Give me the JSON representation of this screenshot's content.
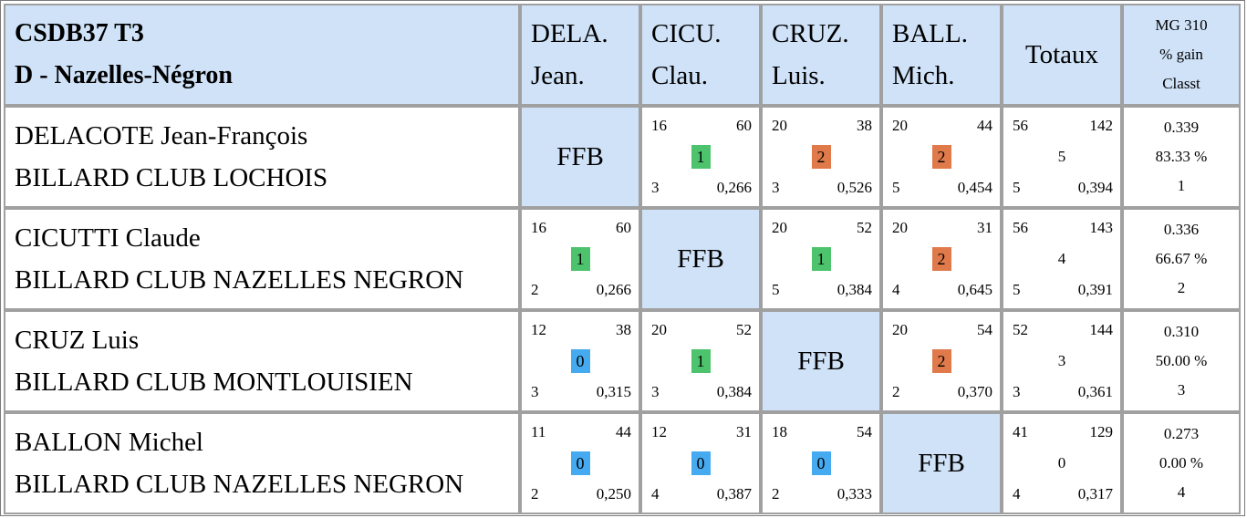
{
  "header": {
    "title_line1": "CSDB37 T3",
    "title_line2": "D - Nazelles-Négron",
    "players": [
      {
        "line1": "DELA.",
        "line2": "Jean."
      },
      {
        "line1": "CICU.",
        "line2": "Clau."
      },
      {
        "line1": "CRUZ.",
        "line2": "Luis."
      },
      {
        "line1": "BALL.",
        "line2": "Mich."
      }
    ],
    "totals_label": "Totaux",
    "mg_line1": "MG 310",
    "mg_line2": "% gain",
    "mg_line3": "Classt"
  },
  "ffb_label": "FFB",
  "rows": [
    {
      "name": "DELACOTE Jean-François",
      "club": "BILLARD CLUB LOCHOIS",
      "cells": [
        null,
        {
          "pts": "16",
          "dist": "60",
          "result": "1",
          "serie": "3",
          "moy": "0,266"
        },
        {
          "pts": "20",
          "dist": "38",
          "result": "2",
          "serie": "3",
          "moy": "0,526"
        },
        {
          "pts": "20",
          "dist": "44",
          "result": "2",
          "serie": "5",
          "moy": "0,454"
        }
      ],
      "totals": {
        "pts": "56",
        "dist": "142",
        "result": "5",
        "serie": "5",
        "moy": "0,394"
      },
      "mg": "0.339",
      "gain": "83.33 %",
      "rank": "1"
    },
    {
      "name": "CICUTTI Claude",
      "club": "BILLARD CLUB NAZELLES NEGRON",
      "cells": [
        {
          "pts": "16",
          "dist": "60",
          "result": "1",
          "serie": "2",
          "moy": "0,266"
        },
        null,
        {
          "pts": "20",
          "dist": "52",
          "result": "1",
          "serie": "5",
          "moy": "0,384"
        },
        {
          "pts": "20",
          "dist": "31",
          "result": "2",
          "serie": "4",
          "moy": "0,645"
        }
      ],
      "totals": {
        "pts": "56",
        "dist": "143",
        "result": "4",
        "serie": "5",
        "moy": "0,391"
      },
      "mg": "0.336",
      "gain": "66.67 %",
      "rank": "2"
    },
    {
      "name": "CRUZ Luis",
      "club": "BILLARD CLUB MONTLOUISIEN",
      "cells": [
        {
          "pts": "12",
          "dist": "38",
          "result": "0",
          "serie": "3",
          "moy": "0,315"
        },
        {
          "pts": "20",
          "dist": "52",
          "result": "1",
          "serie": "3",
          "moy": "0,384"
        },
        null,
        {
          "pts": "20",
          "dist": "54",
          "result": "2",
          "serie": "2",
          "moy": "0,370"
        }
      ],
      "totals": {
        "pts": "52",
        "dist": "144",
        "result": "3",
        "serie": "3",
        "moy": "0,361"
      },
      "mg": "0.310",
      "gain": "50.00 %",
      "rank": "3"
    },
    {
      "name": "BALLON Michel",
      "club": "BILLARD CLUB NAZELLES NEGRON",
      "cells": [
        {
          "pts": "11",
          "dist": "44",
          "result": "0",
          "serie": "2",
          "moy": "0,250"
        },
        {
          "pts": "12",
          "dist": "31",
          "result": "0",
          "serie": "4",
          "moy": "0,387"
        },
        {
          "pts": "18",
          "dist": "54",
          "result": "0",
          "serie": "2",
          "moy": "0,333"
        },
        null
      ],
      "totals": {
        "pts": "41",
        "dist": "129",
        "result": "0",
        "serie": "4",
        "moy": "0,317"
      },
      "mg": "0.273",
      "gain": "0.00 %",
      "rank": "4"
    }
  ],
  "colors": {
    "header_bg": "#cfe2f8",
    "win": "#e07a4a",
    "draw": "#4cc36c",
    "loss": "#45aaf0",
    "border": "#a0a0a0"
  }
}
